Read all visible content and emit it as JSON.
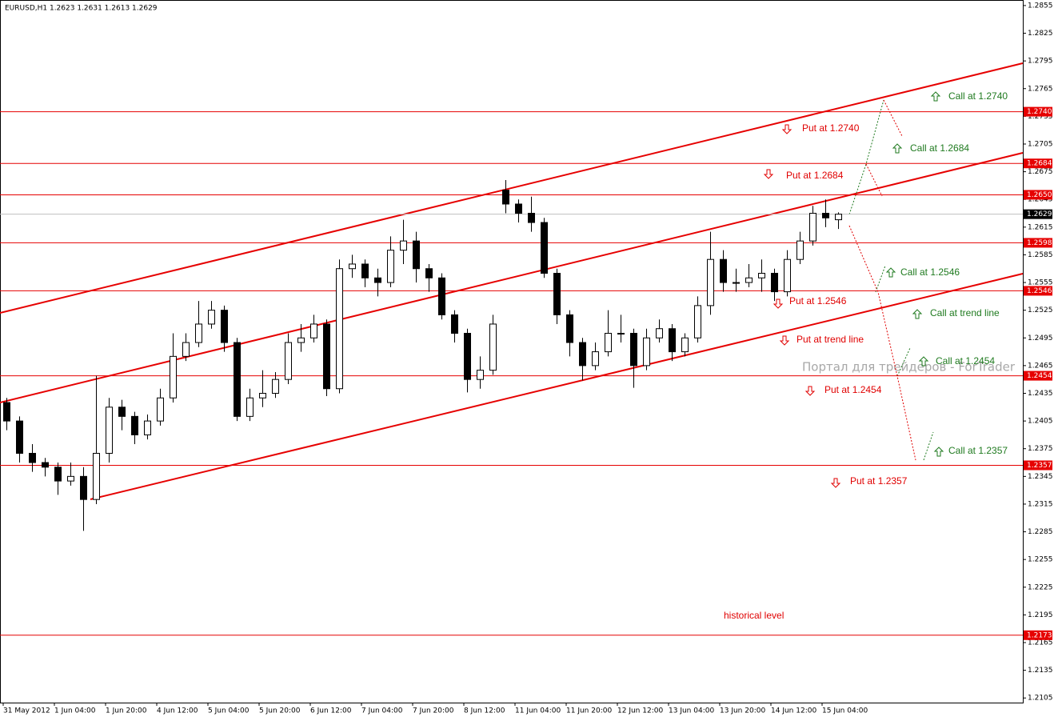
{
  "chart_data": {
    "type": "candlestick",
    "title": "EURUSD,H1  1.2623 1.2631 1.2613 1.2629",
    "categories": [
      "31 May 2012",
      null,
      null,
      null,
      "1 Jun 04:00",
      null,
      null,
      null,
      "1 Jun 20:00",
      null,
      null,
      null,
      "4 Jun 12:00",
      null,
      null,
      null,
      "5 Jun 04:00",
      null,
      null,
      null,
      "5 Jun 20:00",
      null,
      null,
      null,
      "6 Jun 12:00",
      null,
      null,
      null,
      "7 Jun 04:00",
      null,
      null,
      null,
      "7 Jun 20:00",
      null,
      null,
      null,
      "8 Jun 12:00",
      null,
      null,
      null,
      "11 Jun 04:00",
      null,
      null,
      null,
      "11 Jun 20:00",
      null,
      null,
      null,
      "12 Jun 12:00",
      null,
      null,
      null,
      "13 Jun 04:00",
      null,
      null,
      null,
      "13 Jun 20:00",
      null,
      null,
      null,
      "14 Jun 12:00",
      null,
      null,
      null,
      "15 Jun 04:00",
      null
    ],
    "open": [
      1.2425,
      1.2405,
      1.237,
      1.236,
      1.2355,
      1.234,
      1.2345,
      1.232,
      1.237,
      1.242,
      1.241,
      1.239,
      1.2405,
      1.243,
      1.2475,
      1.249,
      1.251,
      1.2525,
      1.249,
      1.241,
      1.243,
      1.2435,
      1.245,
      1.249,
      1.2495,
      1.251,
      1.244,
      1.257,
      1.2575,
      1.256,
      1.2555,
      1.259,
      1.26,
      1.257,
      1.256,
      1.252,
      1.25,
      1.245,
      1.246,
      1.2655,
      1.264,
      1.263,
      1.262,
      1.2565,
      1.252,
      1.249,
      1.2465,
      1.248,
      1.25,
      1.25,
      1.2465,
      1.2495,
      1.2505,
      1.248,
      1.2495,
      1.253,
      1.258,
      1.2555,
      1.2555,
      1.256,
      1.2565,
      1.2545,
      1.258,
      1.26,
      1.263,
      1.2623
    ],
    "high": [
      1.243,
      1.241,
      1.238,
      1.2365,
      1.236,
      1.236,
      1.2355,
      1.2454,
      1.243,
      1.2428,
      1.2415,
      1.2412,
      1.244,
      1.25,
      1.25,
      1.2535,
      1.2535,
      1.253,
      1.2495,
      1.244,
      1.246,
      1.2458,
      1.25,
      1.251,
      1.252,
      1.2515,
      1.258,
      1.2585,
      1.258,
      1.257,
      1.2605,
      1.2623,
      1.261,
      1.2575,
      1.2565,
      1.2525,
      1.2505,
      1.2475,
      1.252,
      1.2666,
      1.2645,
      1.2648,
      1.2625,
      1.257,
      1.2525,
      1.2495,
      1.249,
      1.2525,
      1.252,
      1.2505,
      1.2505,
      1.2515,
      1.251,
      1.25,
      1.254,
      1.261,
      1.259,
      1.257,
      1.2575,
      1.258,
      1.257,
      1.259,
      1.261,
      1.2638,
      1.2645,
      1.2631
    ],
    "low": [
      1.2395,
      1.236,
      1.235,
      1.2345,
      1.2325,
      1.2335,
      1.2286,
      1.2315,
      1.236,
      1.2395,
      1.238,
      1.2385,
      1.24,
      1.2425,
      1.247,
      1.2485,
      1.2505,
      1.248,
      1.2405,
      1.2405,
      1.242,
      1.243,
      1.2445,
      1.248,
      1.249,
      1.2432,
      1.2435,
      1.256,
      1.255,
      1.254,
      1.255,
      1.2575,
      1.2555,
      1.2545,
      1.2515,
      1.249,
      1.2436,
      1.244,
      1.2455,
      1.263,
      1.262,
      1.261,
      1.256,
      1.251,
      1.2475,
      1.2449,
      1.246,
      1.2475,
      1.249,
      1.2441,
      1.246,
      1.249,
      1.247,
      1.2475,
      1.249,
      1.252,
      1.2545,
      1.2545,
      1.255,
      1.2545,
      1.2535,
      1.254,
      1.2575,
      1.2595,
      1.2615,
      1.2613
    ],
    "close": [
      1.2405,
      1.237,
      1.236,
      1.2355,
      1.234,
      1.2345,
      1.232,
      1.237,
      1.242,
      1.241,
      1.239,
      1.2405,
      1.243,
      1.2475,
      1.249,
      1.251,
      1.2525,
      1.249,
      1.241,
      1.243,
      1.2435,
      1.245,
      1.249,
      1.2495,
      1.251,
      1.244,
      1.257,
      1.2575,
      1.256,
      1.2555,
      1.259,
      1.26,
      1.257,
      1.256,
      1.252,
      1.25,
      1.245,
      1.246,
      1.251,
      1.264,
      1.263,
      1.262,
      1.2565,
      1.252,
      1.249,
      1.2465,
      1.248,
      1.25,
      1.25,
      1.2465,
      1.2495,
      1.2505,
      1.248,
      1.2495,
      1.253,
      1.258,
      1.2555,
      1.2555,
      1.256,
      1.2565,
      1.2545,
      1.258,
      1.26,
      1.263,
      1.2625,
      1.2629
    ],
    "ylim": [
      1.21,
      1.2861
    ],
    "yticks": [
      1.2105,
      1.2135,
      1.2165,
      1.2195,
      1.2225,
      1.2255,
      1.2285,
      1.2315,
      1.2345,
      1.2375,
      1.2405,
      1.2435,
      1.2465,
      1.2495,
      1.2525,
      1.2555,
      1.2585,
      1.2615,
      1.2645,
      1.2675,
      1.2705,
      1.2735,
      1.2765,
      1.2795,
      1.2825,
      1.2855
    ],
    "levels": [
      {
        "value": 1.274,
        "label": "1.2740"
      },
      1.2684,
      {
        "value": 1.265,
        "label": "1.2650"
      },
      1.2598,
      1.2546,
      1.2454,
      1.2357,
      1.2173
    ],
    "level_color": "#e60000",
    "current_price": 1.2629,
    "annotations": [
      "Call at 1.2740",
      "Put at 1.2740",
      "Call at 1.2684",
      "Put at 1.2684",
      "Call at 1.2546",
      "Put at 1.2546",
      "Call at trend line",
      "Put at trend line",
      "Call at 1.2454",
      "Put at 1.2454",
      "Call at 1.2357",
      "Put at 1.2357",
      "historical level"
    ],
    "watermark": "Портал для трейдеров - ForTrader"
  }
}
